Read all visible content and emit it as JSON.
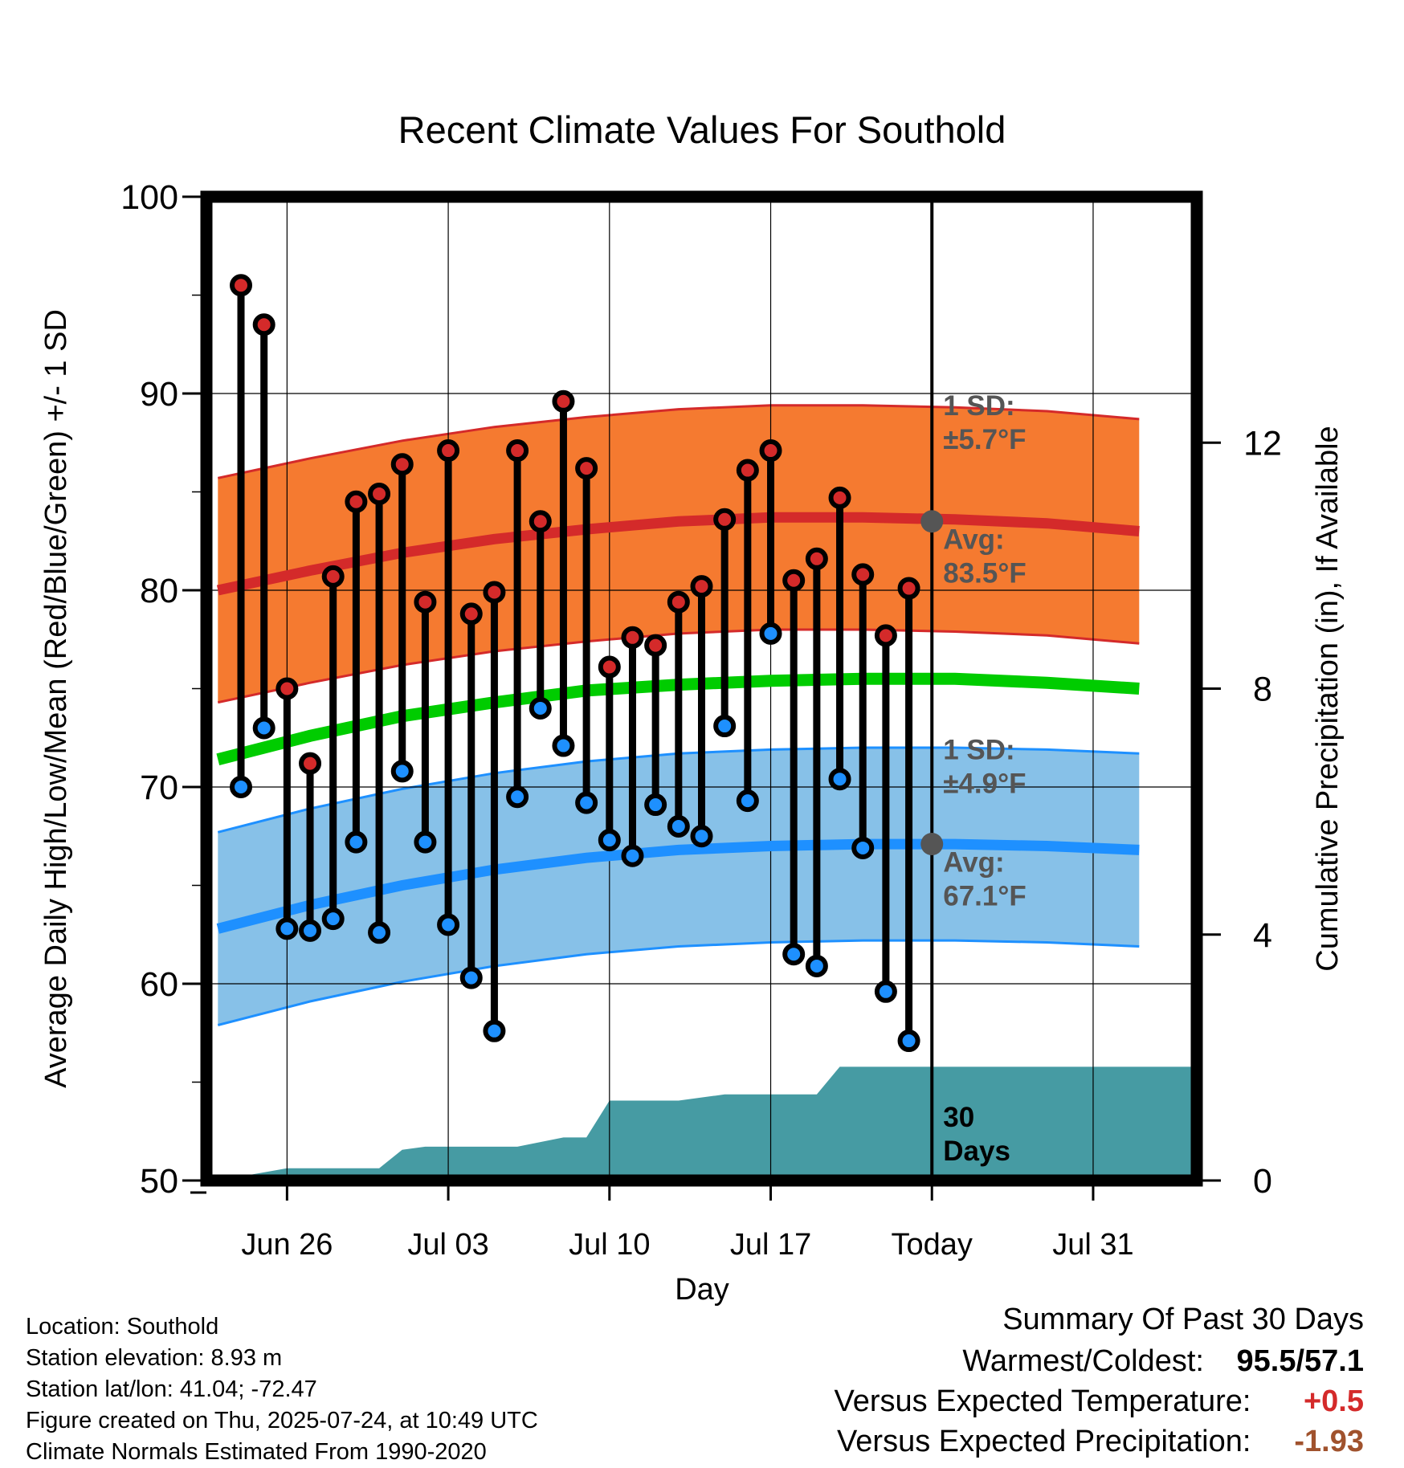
{
  "chart_data": {
    "type": "line",
    "title": "Recent Climate Values For Southold",
    "xlabel": "Day",
    "ylabel": "Average Daily High/Low/Mean (Red/Blue/Green) +/- 1 SD",
    "y2label": "Cumulative Precipitation (in), If Available",
    "ylim": [
      50,
      100
    ],
    "y2lim": [
      0,
      16
    ],
    "yticks": [
      "50",
      "60",
      "70",
      "80",
      "90",
      "100"
    ],
    "y2ticks": [
      "0",
      "4",
      "8",
      "12"
    ],
    "xtick_labels": [
      "Jun 26",
      "Jul 03",
      "Jul 10",
      "Jul 17",
      "Today",
      "Jul 31"
    ],
    "grid": true,
    "days": [
      "Jun 24",
      "Jun 25",
      "Jun 26",
      "Jun 27",
      "Jun 28",
      "Jun 29",
      "Jun 30",
      "Jul 01",
      "Jul 02",
      "Jul 03",
      "Jul 04",
      "Jul 05",
      "Jul 06",
      "Jul 07",
      "Jul 08",
      "Jul 09",
      "Jul 10",
      "Jul 11",
      "Jul 12",
      "Jul 13",
      "Jul 14",
      "Jul 15",
      "Jul 16",
      "Jul 17",
      "Jul 18",
      "Jul 19",
      "Jul 20",
      "Jul 21",
      "Jul 22",
      "Jul 23"
    ],
    "daily_high": [
      95.5,
      93.5,
      75.0,
      71.2,
      80.7,
      84.5,
      84.9,
      86.4,
      79.4,
      87.1,
      78.8,
      79.9,
      87.1,
      83.5,
      89.6,
      86.2,
      76.1,
      77.6,
      77.2,
      79.4,
      80.2,
      83.6,
      86.1,
      87.1,
      80.5,
      81.6,
      84.7,
      80.8,
      77.7,
      80.1
    ],
    "daily_low": [
      70.0,
      73.0,
      62.8,
      62.7,
      63.3,
      67.2,
      62.6,
      70.8,
      67.2,
      63.0,
      60.3,
      57.6,
      69.5,
      74.0,
      72.1,
      69.2,
      67.3,
      66.5,
      69.1,
      68.0,
      67.5,
      73.1,
      69.3,
      77.8,
      61.5,
      60.9,
      70.4,
      66.9,
      59.6,
      57.1
    ],
    "normals": {
      "days": [
        "Jun 23",
        "Jun 27",
        "Jul 01",
        "Jul 05",
        "Jul 09",
        "Jul 13",
        "Jul 17",
        "Jul 21",
        "Jul 25",
        "Jul 29",
        "Aug 02"
      ],
      "high_mean": [
        80.0,
        81.0,
        81.9,
        82.6,
        83.1,
        83.5,
        83.7,
        83.7,
        83.6,
        83.4,
        83.0
      ],
      "high_sd": 5.7,
      "low_mean": [
        62.8,
        64.0,
        65.0,
        65.8,
        66.4,
        66.8,
        67.0,
        67.1,
        67.1,
        67.0,
        66.8
      ],
      "low_sd": 4.9,
      "mean_mean": [
        71.4,
        72.6,
        73.6,
        74.3,
        74.9,
        75.2,
        75.4,
        75.5,
        75.5,
        75.3,
        75.0
      ]
    },
    "precip_cumulative": {
      "x": [
        "Jun 23",
        "Jun 26",
        "Jun 30",
        "Jul 01",
        "Jul 02",
        "Jul 06",
        "Jul 08",
        "Jul 09",
        "Jul 10",
        "Jul 13",
        "Jul 15",
        "Jul 19",
        "Jul 20",
        "Jul 23"
      ],
      "values": [
        0.0,
        0.2,
        0.2,
        0.5,
        0.55,
        0.55,
        0.7,
        0.7,
        1.3,
        1.3,
        1.4,
        1.4,
        1.85,
        1.85
      ]
    },
    "annotations": {
      "high_sd_label": [
        "1 SD:",
        "±5.7°F"
      ],
      "high_avg_label": [
        "Avg:",
        "83.5°F"
      ],
      "low_sd_label": [
        "1 SD:",
        "±4.9°F"
      ],
      "low_avg_label": [
        "Avg:",
        "67.1°F"
      ],
      "period_label": [
        "30",
        "Days"
      ]
    },
    "colors": {
      "high_band": "#f57a30",
      "high_line": "#d42a2a",
      "high_point": "#d42a2a",
      "low_band": "#87c1e8",
      "low_line": "#1e90ff",
      "low_point": "#1e90ff",
      "mean_line": "#00cc00",
      "precip": "#469ba3",
      "annotation": "#555555"
    }
  },
  "info": {
    "location": "Location: Southold",
    "elevation": "Station elevation: 8.93 m",
    "latlon": "Station lat/lon: 41.04; -72.47",
    "created": "Figure created on Thu, 2025-07-24, at 10:49 UTC",
    "normals": "Climate Normals Estimated From 1990-2020"
  },
  "summary": {
    "title": "Summary Of Past 30 Days",
    "warm_cold_label": "Warmest/Coldest:",
    "warm_cold_value": "95.5/57.1",
    "temp_label": "Versus Expected Temperature:",
    "temp_value": "+0.5",
    "temp_color": "#d42a2a",
    "precip_label": "Versus Expected Precipitation:",
    "precip_value": "-1.93",
    "precip_color": "#a0522d"
  }
}
